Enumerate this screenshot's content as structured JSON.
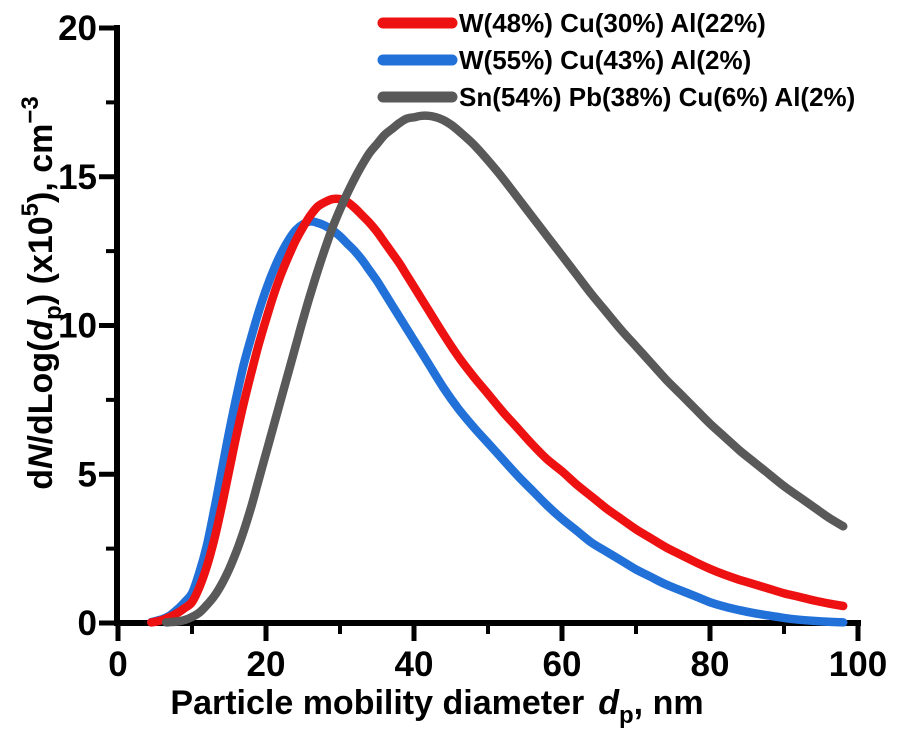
{
  "chart_data": {
    "type": "line",
    "title": "",
    "xlabel": "Particle mobility diameter d_p, nm",
    "ylabel": "dN/dLog(d_p) (x10^5), cm^-3",
    "xlim": [
      0,
      100
    ],
    "ylim": [
      0,
      20
    ],
    "grid": false,
    "legend_position": "top-inside",
    "x_tick_labels": [
      "0",
      "20",
      "40",
      "60",
      "80",
      "100"
    ],
    "x_major_ticks": [
      0,
      20,
      40,
      60,
      80,
      100
    ],
    "x_minor_ticks": [
      10,
      30,
      50,
      70,
      90
    ],
    "y_tick_labels": [
      "0",
      "5",
      "10",
      "15",
      "20"
    ],
    "y_major_ticks": [
      0,
      5,
      10,
      15,
      20
    ],
    "y_minor_ticks": [
      2.5,
      7.5,
      12.5,
      17.5
    ],
    "series": [
      {
        "name": "W(48%) Cu(30%) Al(22%)",
        "color": "#ee1111",
        "z": 2,
        "points": [
          [
            4.5,
            0.02
          ],
          [
            5,
            0.04
          ],
          [
            6,
            0.1
          ],
          [
            7,
            0.2
          ],
          [
            8,
            0.33
          ],
          [
            9,
            0.5
          ],
          [
            10,
            0.7
          ],
          [
            11,
            1.2
          ],
          [
            12,
            1.9
          ],
          [
            13,
            2.8
          ],
          [
            14,
            3.9
          ],
          [
            15,
            5.1
          ],
          [
            16,
            6.3
          ],
          [
            17,
            7.4
          ],
          [
            18,
            8.4
          ],
          [
            19,
            9.35
          ],
          [
            20,
            10.2
          ],
          [
            21,
            11.0
          ],
          [
            22,
            11.7
          ],
          [
            23,
            12.3
          ],
          [
            24,
            12.85
          ],
          [
            25,
            13.3
          ],
          [
            26,
            13.7
          ],
          [
            27,
            14.0
          ],
          [
            28,
            14.15
          ],
          [
            29,
            14.25
          ],
          [
            30,
            14.25
          ],
          [
            31,
            14.15
          ],
          [
            32,
            13.95
          ],
          [
            33,
            13.7
          ],
          [
            34,
            13.45
          ],
          [
            35,
            13.15
          ],
          [
            36,
            12.8
          ],
          [
            37,
            12.45
          ],
          [
            38,
            12.1
          ],
          [
            39,
            11.7
          ],
          [
            40,
            11.3
          ],
          [
            42,
            10.5
          ],
          [
            44,
            9.7
          ],
          [
            46,
            8.95
          ],
          [
            48,
            8.3
          ],
          [
            50,
            7.7
          ],
          [
            52,
            7.1
          ],
          [
            54,
            6.55
          ],
          [
            56,
            6.0
          ],
          [
            58,
            5.5
          ],
          [
            60,
            5.1
          ],
          [
            62,
            4.65
          ],
          [
            64,
            4.25
          ],
          [
            66,
            3.85
          ],
          [
            68,
            3.5
          ],
          [
            70,
            3.15
          ],
          [
            72,
            2.85
          ],
          [
            74,
            2.55
          ],
          [
            76,
            2.3
          ],
          [
            78,
            2.05
          ],
          [
            80,
            1.82
          ],
          [
            82,
            1.62
          ],
          [
            84,
            1.45
          ],
          [
            86,
            1.3
          ],
          [
            88,
            1.15
          ],
          [
            90,
            1.0
          ],
          [
            92,
            0.88
          ],
          [
            94,
            0.76
          ],
          [
            96,
            0.66
          ],
          [
            98,
            0.57
          ]
        ]
      },
      {
        "name": "W(55%) Cu(43%) Al(2%)",
        "color": "#2171d9",
        "z": 1,
        "points": [
          [
            4.5,
            0.03
          ],
          [
            5,
            0.06
          ],
          [
            6,
            0.13
          ],
          [
            7,
            0.25
          ],
          [
            8,
            0.45
          ],
          [
            9,
            0.7
          ],
          [
            10,
            1.0
          ],
          [
            11,
            1.7
          ],
          [
            12,
            2.6
          ],
          [
            13,
            3.8
          ],
          [
            14,
            5.1
          ],
          [
            15,
            6.4
          ],
          [
            16,
            7.6
          ],
          [
            17,
            8.7
          ],
          [
            18,
            9.6
          ],
          [
            19,
            10.45
          ],
          [
            20,
            11.2
          ],
          [
            21,
            11.85
          ],
          [
            22,
            12.4
          ],
          [
            23,
            12.85
          ],
          [
            24,
            13.2
          ],
          [
            25,
            13.4
          ],
          [
            26,
            13.5
          ],
          [
            27,
            13.45
          ],
          [
            28,
            13.35
          ],
          [
            29,
            13.2
          ],
          [
            30,
            13.0
          ],
          [
            31,
            12.75
          ],
          [
            32,
            12.5
          ],
          [
            33,
            12.2
          ],
          [
            34,
            11.85
          ],
          [
            35,
            11.5
          ],
          [
            36,
            11.1
          ],
          [
            37,
            10.7
          ],
          [
            38,
            10.3
          ],
          [
            39,
            9.9
          ],
          [
            40,
            9.5
          ],
          [
            42,
            8.7
          ],
          [
            44,
            7.9
          ],
          [
            46,
            7.2
          ],
          [
            48,
            6.6
          ],
          [
            50,
            6.05
          ],
          [
            52,
            5.5
          ],
          [
            54,
            4.95
          ],
          [
            56,
            4.45
          ],
          [
            58,
            3.95
          ],
          [
            60,
            3.5
          ],
          [
            62,
            3.1
          ],
          [
            64,
            2.7
          ],
          [
            66,
            2.4
          ],
          [
            68,
            2.1
          ],
          [
            70,
            1.8
          ],
          [
            72,
            1.55
          ],
          [
            74,
            1.3
          ],
          [
            76,
            1.1
          ],
          [
            78,
            0.9
          ],
          [
            80,
            0.7
          ],
          [
            82,
            0.55
          ],
          [
            84,
            0.43
          ],
          [
            86,
            0.33
          ],
          [
            88,
            0.25
          ],
          [
            90,
            0.17
          ],
          [
            92,
            0.11
          ],
          [
            94,
            0.07
          ],
          [
            96,
            0.04
          ],
          [
            98,
            0.02
          ]
        ]
      },
      {
        "name": "Sn(54%) Pb(38%) Cu(6%) Al(2%)",
        "color": "#595959",
        "z": 3,
        "points": [
          [
            6.5,
            0.02
          ],
          [
            7,
            0.03
          ],
          [
            8,
            0.05
          ],
          [
            9,
            0.1
          ],
          [
            10,
            0.2
          ],
          [
            11,
            0.35
          ],
          [
            12,
            0.6
          ],
          [
            13,
            0.9
          ],
          [
            14,
            1.3
          ],
          [
            15,
            1.8
          ],
          [
            16,
            2.4
          ],
          [
            17,
            3.1
          ],
          [
            18,
            3.9
          ],
          [
            19,
            4.8
          ],
          [
            20,
            5.7
          ],
          [
            21,
            6.6
          ],
          [
            22,
            7.5
          ],
          [
            23,
            8.4
          ],
          [
            24,
            9.3
          ],
          [
            25,
            10.2
          ],
          [
            26,
            11.05
          ],
          [
            27,
            11.85
          ],
          [
            28,
            12.6
          ],
          [
            29,
            13.3
          ],
          [
            30,
            13.9
          ],
          [
            31,
            14.45
          ],
          [
            32,
            14.95
          ],
          [
            33,
            15.4
          ],
          [
            34,
            15.8
          ],
          [
            35,
            16.1
          ],
          [
            36,
            16.4
          ],
          [
            37,
            16.6
          ],
          [
            38,
            16.8
          ],
          [
            39,
            16.95
          ],
          [
            40,
            17.0
          ],
          [
            41,
            17.05
          ],
          [
            42,
            17.05
          ],
          [
            43,
            17.0
          ],
          [
            44,
            16.9
          ],
          [
            45,
            16.75
          ],
          [
            46,
            16.55
          ],
          [
            48,
            16.1
          ],
          [
            50,
            15.55
          ],
          [
            52,
            14.95
          ],
          [
            54,
            14.3
          ],
          [
            56,
            13.65
          ],
          [
            58,
            13.0
          ],
          [
            60,
            12.35
          ],
          [
            62,
            11.7
          ],
          [
            64,
            11.05
          ],
          [
            66,
            10.45
          ],
          [
            68,
            9.85
          ],
          [
            70,
            9.3
          ],
          [
            72,
            8.75
          ],
          [
            74,
            8.2
          ],
          [
            76,
            7.7
          ],
          [
            78,
            7.2
          ],
          [
            80,
            6.7
          ],
          [
            82,
            6.25
          ],
          [
            84,
            5.8
          ],
          [
            86,
            5.4
          ],
          [
            88,
            5.0
          ],
          [
            90,
            4.6
          ],
          [
            92,
            4.25
          ],
          [
            94,
            3.9
          ],
          [
            96,
            3.55
          ],
          [
            98,
            3.25
          ]
        ]
      }
    ]
  },
  "labels": {
    "x_title": {
      "main": "Particle mobility diameter",
      "d": "d",
      "sub": "p",
      "tail": ", nm"
    },
    "y_title": {
      "d1": "d",
      "n": "N",
      "mid": "/dLog(",
      "d2": "d",
      "sub": "p",
      "close": ") (x10",
      "sup": "5",
      "tail": "), cm",
      "sup2": "−3"
    }
  },
  "colors": {
    "axis": "#000000",
    "background": "#ffffff",
    "series_red": "#ee1111",
    "series_blue": "#2171d9",
    "series_gray": "#595959"
  }
}
